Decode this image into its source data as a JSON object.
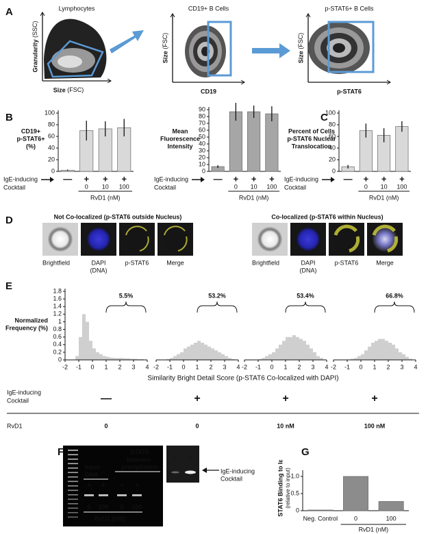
{
  "panel_letters": [
    "A",
    "B",
    "C",
    "D",
    "E",
    "F",
    "G"
  ],
  "gating": [
    {
      "title": "Lymphocytes",
      "xlabel": "Size",
      "xunit": "(FSC)",
      "ylabel": "Granularity",
      "yunit": "(SSC)"
    },
    {
      "title": "CD19+ B Cells",
      "xlabel": "CD19",
      "ylabel": "Size",
      "yunit": "(FSC)"
    },
    {
      "title": "p-STAT6+ B Cells",
      "xlabel": "p-STAT6",
      "ylabel": "Size",
      "yunit": "(FSC)"
    }
  ],
  "treatment": {
    "row_label": [
      "IgE-inducing",
      "Cocktail"
    ],
    "group_label": "RvD1 (nM)"
  },
  "chart_data": [
    {
      "type": "bar",
      "ylabel": [
        "CD19+",
        "p-STAT6+",
        "(%)"
      ],
      "categories": [
        "—",
        "+",
        "+",
        "+"
      ],
      "rvd1": [
        "0",
        "10",
        "100"
      ],
      "values": [
        2,
        70,
        73,
        75
      ],
      "errors": [
        1,
        17,
        13,
        15
      ],
      "color": "#d9d9d9",
      "ylim": [
        0,
        100
      ],
      "yticks": [
        0,
        20,
        40,
        60,
        80,
        100
      ]
    },
    {
      "type": "bar",
      "ylabel": [
        "Mean",
        "Fluorescence",
        "Intensity"
      ],
      "categories": [
        "—",
        "+",
        "+",
        "+"
      ],
      "rvd1": [
        "0",
        "10",
        "100"
      ],
      "values": [
        7,
        87,
        87,
        84
      ],
      "errors": [
        2,
        13,
        9,
        11
      ],
      "color": "#a6a6a6",
      "ylim": [
        0,
        90
      ],
      "yticks": [
        0,
        10,
        20,
        30,
        40,
        50,
        60,
        70,
        80,
        90
      ]
    },
    {
      "type": "bar",
      "ylabel": [
        "Percent of Cells",
        "p-STAT6 Nuclear",
        "Translocation"
      ],
      "categories": [
        "—",
        "+",
        "+",
        "+"
      ],
      "rvd1": [
        "0",
        "10",
        "100"
      ],
      "values": [
        8,
        70,
        62,
        77
      ],
      "errors": [
        3,
        12,
        12,
        9
      ],
      "color": "#d9d9d9",
      "ylim": [
        0,
        100
      ],
      "yticks": [
        0,
        20,
        40,
        60,
        80,
        100
      ]
    },
    {
      "type": "histogram",
      "annotation": "5.5%",
      "xlim": [
        -2,
        4
      ],
      "xticks": [
        -2,
        -1,
        0,
        1,
        2,
        3,
        4
      ],
      "ylim": [
        0,
        1.8
      ],
      "yticks": [
        0,
        0.2,
        0.4,
        0.6,
        0.8,
        1,
        1.2,
        1.4,
        1.6,
        1.8
      ],
      "color": "#cfcfcf",
      "bins": [
        -1.25,
        -1,
        -0.75,
        -0.5,
        -0.25,
        0,
        0.25,
        0.5,
        0.75,
        1,
        1.25,
        1.5,
        1.75,
        2,
        2.25,
        2.5,
        2.75,
        3,
        3.25,
        3.5,
        3.75
      ],
      "values": [
        0.1,
        0.6,
        1.2,
        1.0,
        0.5,
        0.3,
        0.2,
        0.15,
        0.1,
        0.08,
        0.06,
        0.05,
        0.05,
        0.05,
        0.04,
        0.04,
        0.03,
        0.03,
        0.02,
        0.02
      ]
    },
    {
      "type": "histogram",
      "annotation": "53.2%",
      "xlim": [
        -2,
        4
      ],
      "xticks": [
        -2,
        -1,
        0,
        1,
        2,
        3,
        4
      ],
      "ylim": [
        0,
        1.8
      ],
      "color": "#cfcfcf",
      "bins": [
        -1.25,
        -1,
        -0.75,
        -0.5,
        -0.25,
        0,
        0.25,
        0.5,
        0.75,
        1,
        1.25,
        1.5,
        1.75,
        2,
        2.25,
        2.5,
        2.75,
        3,
        3.25,
        3.5,
        3.75
      ],
      "values": [
        0.02,
        0.05,
        0.1,
        0.15,
        0.2,
        0.3,
        0.35,
        0.4,
        0.45,
        0.5,
        0.45,
        0.4,
        0.35,
        0.3,
        0.25,
        0.2,
        0.15,
        0.1,
        0.05,
        0.02
      ]
    },
    {
      "type": "histogram",
      "annotation": "53.4%",
      "xlim": [
        -2,
        4
      ],
      "xticks": [
        -2,
        -1,
        0,
        1,
        2,
        3,
        4
      ],
      "ylim": [
        0,
        1.8
      ],
      "color": "#cfcfcf",
      "bins": [
        -1.25,
        -1,
        -0.75,
        -0.5,
        -0.25,
        0,
        0.25,
        0.5,
        0.75,
        1,
        1.25,
        1.5,
        1.75,
        2,
        2.25,
        2.5,
        2.75,
        3,
        3.25,
        3.5,
        3.75
      ],
      "values": [
        0,
        0.02,
        0.05,
        0.1,
        0.15,
        0.2,
        0.3,
        0.4,
        0.5,
        0.6,
        0.6,
        0.65,
        0.6,
        0.55,
        0.5,
        0.4,
        0.3,
        0.2,
        0.1,
        0.05
      ]
    },
    {
      "type": "histogram",
      "annotation": "66.8%",
      "xlim": [
        -2,
        4
      ],
      "xticks": [
        -2,
        -1,
        0,
        1,
        2,
        3,
        4
      ],
      "ylim": [
        0,
        1.8
      ],
      "color": "#cfcfcf",
      "bins": [
        -1.25,
        -1,
        -0.75,
        -0.5,
        -0.25,
        0,
        0.25,
        0.5,
        0.75,
        1,
        1.25,
        1.5,
        1.75,
        2,
        2.25,
        2.5,
        2.75,
        3,
        3.25,
        3.5,
        3.75
      ],
      "values": [
        0,
        0.01,
        0.03,
        0.05,
        0.1,
        0.15,
        0.25,
        0.35,
        0.45,
        0.5,
        0.55,
        0.55,
        0.5,
        0.45,
        0.4,
        0.3,
        0.2,
        0.15,
        0.08,
        0.03
      ]
    },
    {
      "type": "bar",
      "ylabel": "STAT6 Binding to Iε",
      "ylabel_sub": "(relative to input)",
      "categories": [
        "Neg. Control",
        "0",
        "100"
      ],
      "group_label": "RvD1 (nM)",
      "values": [
        0.02,
        1.0,
        0.27
      ],
      "color": "#8c8c8c",
      "ylim": [
        0,
        1.1
      ],
      "yticks": [
        0,
        0.5,
        {
          "value": 1,
          "label": "1.0"
        }
      ]
    }
  ],
  "D": {
    "left_title": "Not Co-localized (p-STAT6 outside Nucleus)",
    "right_title": "Co-localized (p-STAT6 within Nucleus)",
    "channels": [
      [
        "Brightfield"
      ],
      [
        "DAPI",
        "(DNA)"
      ],
      [
        "p-STAT6"
      ],
      [
        "Merge"
      ]
    ]
  },
  "E": {
    "xlabel": "Similarity Bright Detail Score (p-STAT6 Co-localized with DAPI)",
    "ylabel": [
      "Normalized",
      "Frequency (%)"
    ],
    "row_label": [
      "IgE-inducing",
      "Cocktail"
    ],
    "signs": [
      "—",
      "+",
      "+",
      "+"
    ],
    "rvd1_label": "RvD1",
    "rvd1": [
      "0",
      "0",
      "10 nM",
      "100 nM"
    ]
  },
  "F": {
    "input": [
      "Input",
      "DNA"
    ],
    "ip": [
      "STAT6",
      "Immuno-",
      "precipitation"
    ],
    "signs": [
      "+",
      "+",
      "+",
      "+"
    ],
    "rvd1": [
      "0",
      "100",
      "0",
      "100"
    ],
    "rvd1_label": "RvD1 (nM)",
    "right_signs": [
      "–",
      "+"
    ],
    "arrow_label": [
      "IgE-inducing",
      "Cocktail"
    ]
  }
}
